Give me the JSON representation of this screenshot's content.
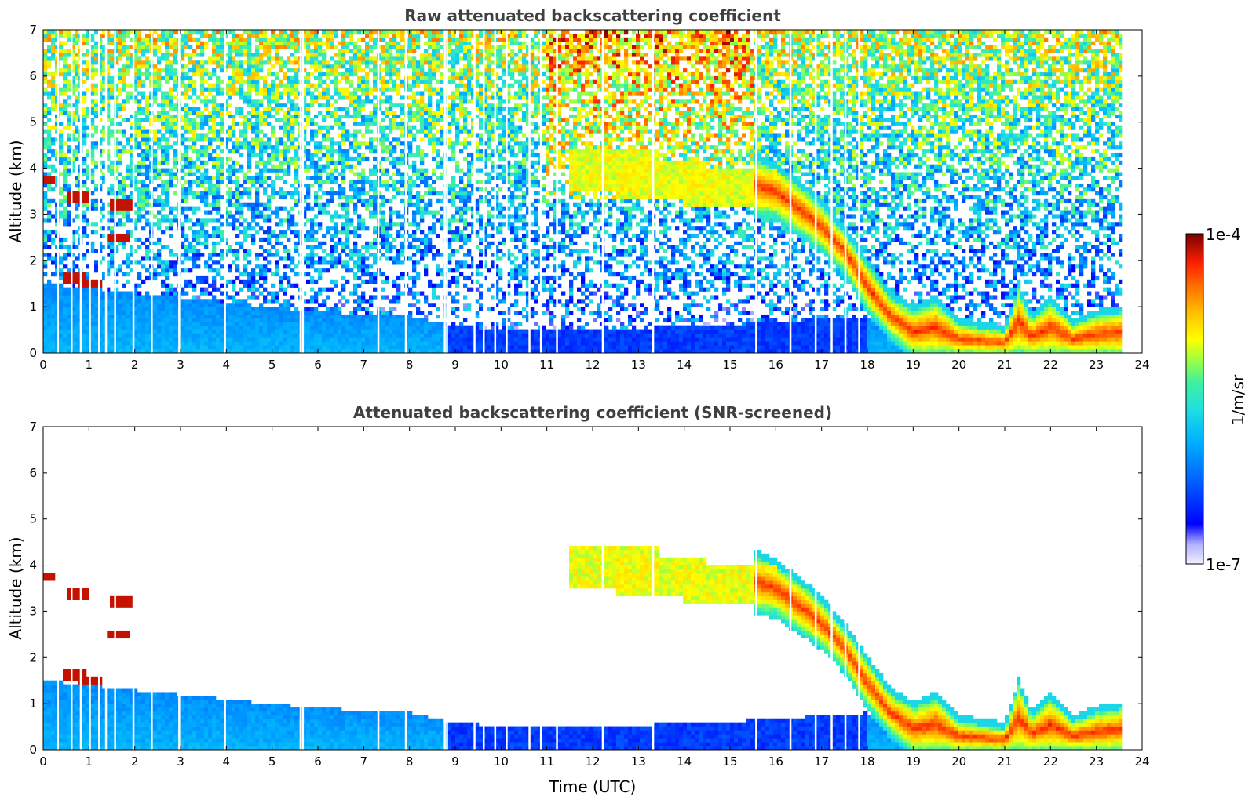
{
  "chart_data": [
    {
      "type": "heatmap",
      "title": "Raw attenuated backscattering coefficient",
      "xlabel": "",
      "ylabel": "Altitude (km)",
      "xlim": [
        0,
        24
      ],
      "ylim": [
        0,
        7
      ],
      "xticks": [
        "0",
        "1",
        "2",
        "3",
        "4",
        "5",
        "6",
        "7",
        "8",
        "9",
        "10",
        "11",
        "12",
        "13",
        "14",
        "15",
        "16",
        "17",
        "18",
        "19",
        "20",
        "21",
        "22",
        "23",
        "24"
      ],
      "yticks": [
        "0",
        "1",
        "2",
        "3",
        "4",
        "5",
        "6",
        "7"
      ],
      "data_end_hour": 23.6,
      "boundary_layer_top_km": [
        [
          0,
          1.5
        ],
        [
          2,
          1.3
        ],
        [
          4,
          1.1
        ],
        [
          6,
          0.9
        ],
        [
          8,
          0.8
        ],
        [
          9,
          0.55
        ],
        [
          12,
          0.5
        ],
        [
          15,
          0.6
        ],
        [
          18,
          0.8
        ],
        [
          19,
          0.2
        ],
        [
          24,
          0.2
        ]
      ],
      "aerosol_layer_top_km": [
        [
          15.5,
          4.2
        ],
        [
          16,
          4.0
        ],
        [
          17,
          3.2
        ],
        [
          17.5,
          2.6
        ],
        [
          18,
          1.9
        ],
        [
          18.5,
          1.2
        ],
        [
          19,
          0.9
        ],
        [
          19.5,
          1.1
        ],
        [
          20,
          0.6
        ],
        [
          21,
          0.45
        ],
        [
          21.3,
          1.4
        ],
        [
          21.6,
          0.7
        ],
        [
          22,
          1.1
        ],
        [
          22.5,
          0.6
        ],
        [
          23,
          0.8
        ],
        [
          23.6,
          0.9
        ]
      ],
      "aerosol_layer_base_km": [
        [
          15.5,
          3.1
        ],
        [
          16,
          3.0
        ],
        [
          17,
          2.3
        ],
        [
          17.5,
          1.8
        ],
        [
          18,
          1.0
        ],
        [
          18.5,
          0.4
        ],
        [
          19,
          0.0
        ],
        [
          24,
          0.0
        ]
      ],
      "elevated_layer_km": [
        [
          12.5,
          3.5,
          4.4
        ],
        [
          13.5,
          3.3,
          4.2
        ],
        [
          15,
          3.2,
          4.0
        ]
      ],
      "cloud_features": [
        [
          0.0,
          3.75
        ],
        [
          0.8,
          3.4
        ],
        [
          1.7,
          3.2
        ],
        [
          1.6,
          2.5
        ],
        [
          0.7,
          1.6
        ],
        [
          1.0,
          1.5
        ]
      ],
      "gap_hours": [
        0.3,
        0.6,
        0.8,
        1.0,
        1.2,
        1.35,
        1.55,
        1.95,
        2.35,
        2.95,
        3.95,
        5.6,
        5.65,
        7.3,
        7.9,
        8.75,
        8.8,
        9.4,
        9.6,
        9.85,
        10.1,
        10.6,
        10.85,
        11.2,
        12.2,
        13.3,
        15.55,
        16.3,
        16.85,
        17.2,
        17.5,
        17.8
      ],
      "colorbar": {
        "min": "1e-7",
        "max": "1e-4",
        "label": "1/m/sr"
      }
    },
    {
      "type": "heatmap",
      "title": "Attenuated backscattering coefficient (SNR-screened)",
      "xlabel": "Time (UTC)",
      "ylabel": "Altitude (km)",
      "xlim": [
        0,
        24
      ],
      "ylim": [
        0,
        7
      ],
      "xticks": [
        "0",
        "1",
        "2",
        "3",
        "4",
        "5",
        "6",
        "7",
        "8",
        "9",
        "10",
        "11",
        "12",
        "13",
        "14",
        "15",
        "16",
        "17",
        "18",
        "19",
        "20",
        "21",
        "22",
        "23",
        "24"
      ],
      "yticks": [
        "0",
        "1",
        "2",
        "3",
        "4",
        "5",
        "6",
        "7"
      ],
      "data_end_hour": 23.6,
      "screened": true
    }
  ],
  "colorbar": {
    "max_label": "1e-4",
    "min_label": "1e-7",
    "unit_label": "1/m/sr",
    "colormap": [
      "#f0f0ff",
      "#b0b0ff",
      "#0000ff",
      "#0040ff",
      "#0080ff",
      "#00c0ff",
      "#20e0e0",
      "#40f0a0",
      "#80ff60",
      "#c0ff20",
      "#ffff00",
      "#ffc000",
      "#ff8000",
      "#ff4000",
      "#e00000",
      "#800000"
    ]
  }
}
